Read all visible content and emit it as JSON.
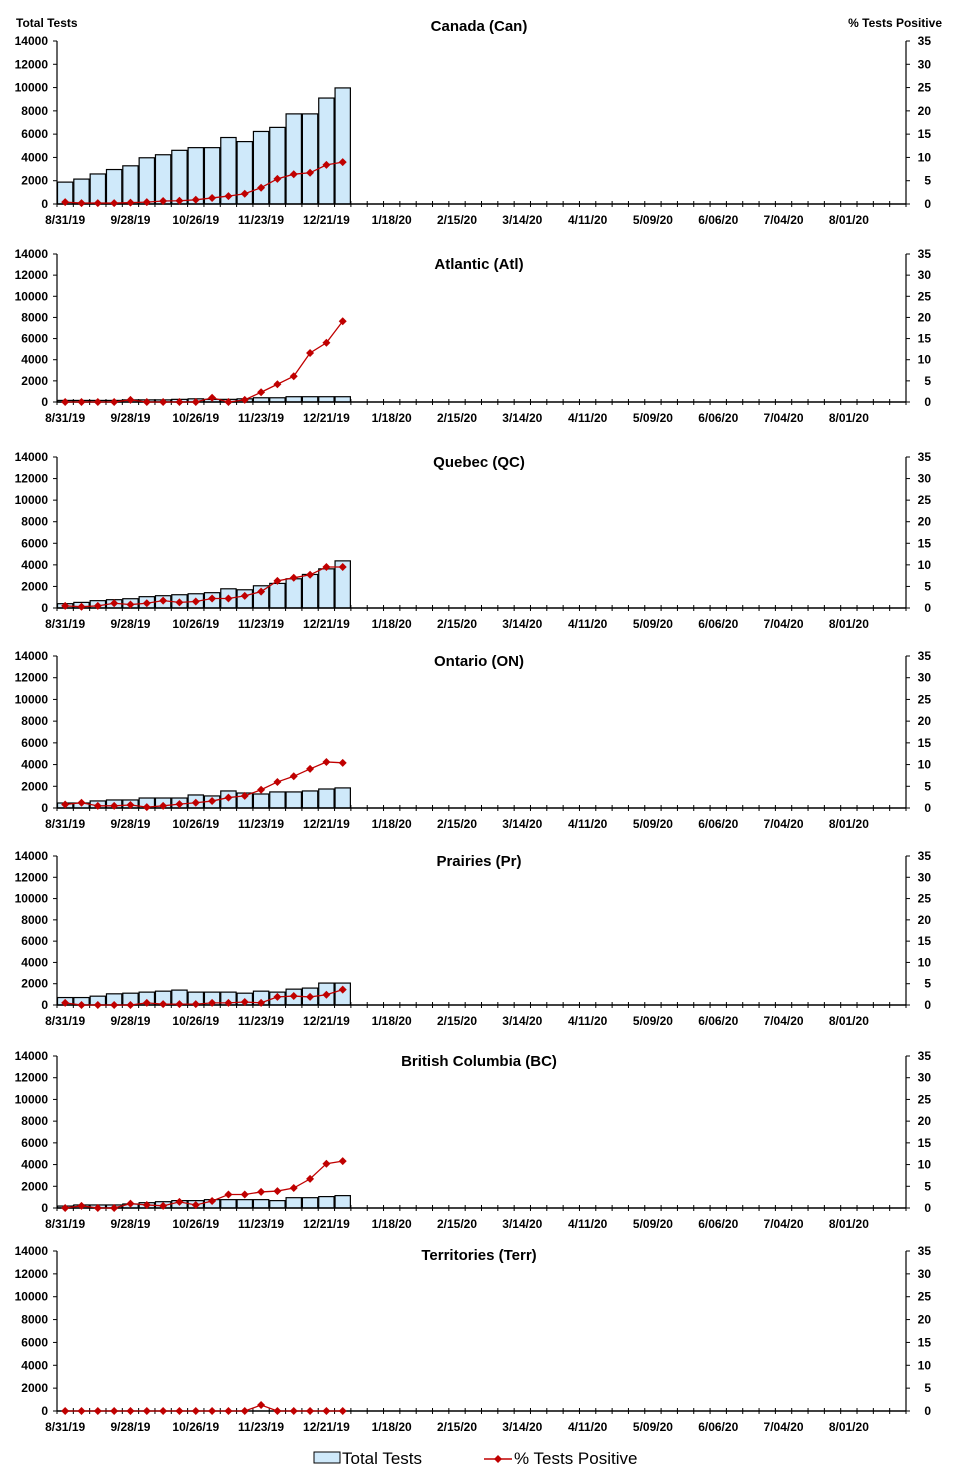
{
  "chart_data": {
    "type": "bar+line",
    "left_axis_label": "Total Tests",
    "right_axis_label": "% Tests Positive",
    "left_ylim": [
      0,
      14000
    ],
    "left_ticks": [
      0,
      2000,
      4000,
      6000,
      8000,
      10000,
      12000,
      14000
    ],
    "right_ylim": [
      0,
      35
    ],
    "right_ticks": [
      0,
      5,
      10,
      15,
      20,
      25,
      30,
      35
    ],
    "x_tick_labels": [
      "8/31/19",
      "9/28/19",
      "10/26/19",
      "11/23/19",
      "12/21/19",
      "1/18/20",
      "2/15/20",
      "3/14/20",
      "4/11/20",
      "5/09/20",
      "6/06/20",
      "7/04/20",
      "8/01/20"
    ],
    "x_range": [
      "8/31/19",
      "8/22/20"
    ],
    "x": [
      "8/31/19",
      "9/07/19",
      "9/14/19",
      "9/21/19",
      "9/28/19",
      "10/05/19",
      "10/12/19",
      "10/19/19",
      "10/26/19",
      "11/02/19",
      "11/09/19",
      "11/16/19",
      "11/23/19",
      "11/30/19",
      "12/07/19",
      "12/14/19",
      "12/21/19",
      "12/28/19"
    ],
    "legend": {
      "bars": "Total Tests",
      "line": "% Tests Positive",
      "placement": "bottom"
    },
    "colors": {
      "bar_fill": "#cfe9fa",
      "bar_stroke": "#000000",
      "line": "#c00000"
    },
    "panels": [
      {
        "title": "Canada (Can)",
        "total_tests": [
          1880,
          2140,
          2580,
          2960,
          3280,
          3970,
          4230,
          4610,
          4840,
          4840,
          5710,
          5360,
          6230,
          6580,
          7740,
          7740,
          9100,
          9970
        ],
        "pct_positive": [
          0.4,
          0.2,
          0.2,
          0.2,
          0.3,
          0.4,
          0.65,
          0.7,
          0.9,
          1.3,
          1.7,
          2.2,
          3.5,
          5.4,
          6.4,
          6.7,
          8.4,
          9.0
        ]
      },
      {
        "title": "Atlantic (Atl)",
        "total_tests": [
          150,
          150,
          150,
          150,
          200,
          200,
          200,
          250,
          300,
          250,
          250,
          300,
          400,
          400,
          500,
          500,
          500,
          500
        ],
        "pct_positive": [
          0,
          0,
          0,
          0,
          0.5,
          0,
          0,
          0,
          0,
          1.0,
          0,
          0.5,
          2.3,
          4.2,
          6.1,
          11.6,
          14.0,
          19.1
        ]
      },
      {
        "title": "Quebec (QC)",
        "total_tests": [
          400,
          520,
          680,
          770,
          860,
          1050,
          1140,
          1230,
          1320,
          1420,
          1780,
          1690,
          2060,
          2280,
          2710,
          3110,
          3630,
          4370
        ],
        "pct_positive": [
          0.5,
          0.3,
          0.5,
          1.1,
          0.8,
          1.1,
          1.7,
          1.3,
          1.5,
          2.2,
          2.2,
          2.8,
          3.8,
          6.3,
          7.0,
          7.7,
          9.5,
          9.5
        ]
      },
      {
        "title": "Ontario (ON)",
        "total_tests": [
          460,
          460,
          650,
          740,
          740,
          920,
          920,
          920,
          1200,
          1110,
          1570,
          1380,
          1290,
          1480,
          1480,
          1570,
          1750,
          1850
        ],
        "pct_positive": [
          0.8,
          1.2,
          0.5,
          0.5,
          0.7,
          0.2,
          0.5,
          0.9,
          1.2,
          1.6,
          2.4,
          2.8,
          4.2,
          6.0,
          7.3,
          9.0,
          10.6,
          10.4
        ]
      },
      {
        "title": "Prairies (Pr)",
        "total_tests": [
          700,
          700,
          830,
          1050,
          1110,
          1210,
          1300,
          1400,
          1210,
          1210,
          1210,
          1110,
          1300,
          1210,
          1490,
          1590,
          2060,
          2060
        ],
        "pct_positive": [
          0.5,
          0,
          0,
          0,
          0,
          0.5,
          0.2,
          0.2,
          0.2,
          0.5,
          0.5,
          0.7,
          0.5,
          1.9,
          2.1,
          1.9,
          2.4,
          3.6
        ]
      },
      {
        "title": "British Columbia (BC)",
        "total_tests": [
          180,
          280,
          280,
          280,
          370,
          490,
          580,
          680,
          680,
          770,
          770,
          770,
          770,
          680,
          950,
          950,
          1050,
          1140
        ],
        "pct_positive": [
          0,
          0.5,
          0,
          0,
          1.0,
          0.7,
          0.5,
          1.4,
          0.7,
          1.6,
          3.1,
          3.1,
          3.7,
          3.9,
          4.6,
          6.7,
          10.2,
          10.8
        ]
      },
      {
        "title": "Territories (Terr)",
        "total_tests": [
          0,
          0,
          0,
          0,
          0,
          0,
          0,
          0,
          0,
          0,
          0,
          0,
          0,
          0,
          0,
          0,
          0,
          0
        ],
        "pct_positive": [
          0,
          0,
          0,
          0,
          0,
          0,
          0,
          0,
          0,
          0,
          0,
          0,
          1.3,
          0,
          0,
          0,
          0,
          0
        ]
      }
    ]
  }
}
